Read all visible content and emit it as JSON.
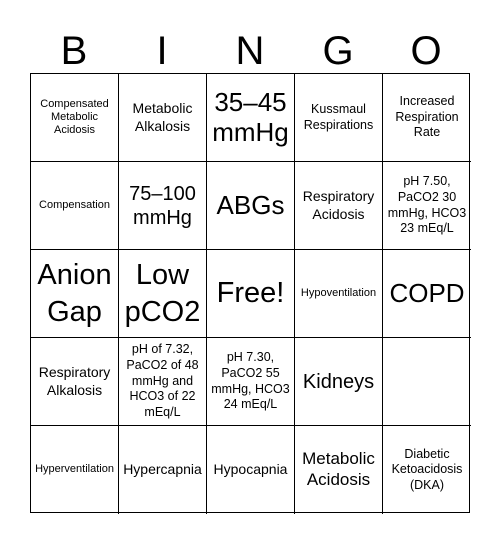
{
  "header": {
    "letters": [
      "B",
      "I",
      "N",
      "G",
      "O"
    ]
  },
  "board": {
    "cells": [
      [
        "Compensated Metabolic Acidosis",
        "Metabolic Alkalosis",
        "35–45 mmHg",
        "Kussmaul Respirations",
        "Increased Respiration Rate"
      ],
      [
        "Compensation",
        "75–100 mmHg",
        "ABGs",
        "Respiratory Acidosis",
        "pH 7.50, PaCO2 30 mmHg, HCO3 23 mEq/L"
      ],
      [
        "Anion Gap",
        "Low pCO2",
        "Free!",
        "Hypoventilation",
        "COPD"
      ],
      [
        "Respiratory Alkalosis",
        "pH of 7.32, PaCO2 of 48 mmHg and HCO3 of 22 mEq/L",
        "pH 7.30, PaCO2 55 mmHg, HCO3 24 mEq/L",
        "Kidneys",
        ""
      ],
      [
        "Hyperventilation",
        "Hypercapnia",
        "Hypocapnia",
        "Metabolic Acidosis",
        "Diabetic Ketoacidosis (DKA)"
      ]
    ]
  }
}
